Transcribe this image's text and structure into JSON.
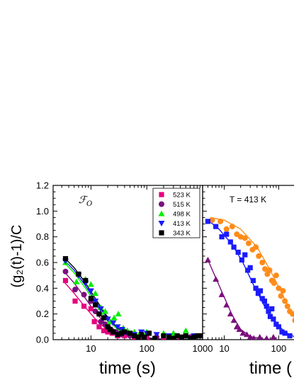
{
  "chart_data": [
    {
      "type": "scatter",
      "panel_label": "ℱ",
      "panel_label_sub": "O",
      "xlabel": "time (s)",
      "ylabel": "(g₂(t)-1)/C",
      "x_scale": "log",
      "xlim": [
        2.1,
        1000
      ],
      "ylim": [
        0,
        1.2
      ],
      "x_ticks": [
        {
          "value": 10,
          "label": "10"
        },
        {
          "value": 100,
          "label": "100"
        },
        {
          "value": 1000,
          "label": "1000"
        }
      ],
      "y_ticks": [
        {
          "value": 0.0,
          "label": "0.0"
        },
        {
          "value": 0.2,
          "label": "0.2"
        },
        {
          "value": 0.4,
          "label": "0.4"
        },
        {
          "value": 0.6,
          "label": "0.6"
        },
        {
          "value": 0.8,
          "label": "0.8"
        },
        {
          "value": 1.0,
          "label": "1.0"
        },
        {
          "value": 1.2,
          "label": "1.2"
        }
      ],
      "legend_position": "top-right",
      "series": [
        {
          "name": "523 K",
          "marker": "square",
          "color": "#e6007e",
          "points": [
            [
              3.5,
              0.46
            ],
            [
              5.2,
              0.3
            ],
            [
              7.5,
              0.26
            ],
            [
              10,
              0.24
            ],
            [
              11.5,
              0.14
            ],
            [
              14,
              0.1
            ],
            [
              17,
              0.07
            ],
            [
              20,
              0.06
            ],
            [
              24,
              0.05
            ],
            [
              30,
              0.03
            ],
            [
              40,
              0.03
            ],
            [
              60,
              0.02
            ],
            [
              100,
              0.02
            ],
            [
              200,
              0.01
            ],
            [
              400,
              0.02
            ],
            [
              700,
              0.01
            ]
          ],
          "fit": [
            [
              3.3,
              0.45
            ],
            [
              5,
              0.36
            ],
            [
              8,
              0.25
            ],
            [
              12,
              0.16
            ],
            [
              18,
              0.09
            ],
            [
              30,
              0.04
            ],
            [
              60,
              0.015
            ],
            [
              150,
              0.004
            ],
            [
              1000,
              0.0
            ]
          ]
        },
        {
          "name": "515 K",
          "marker": "circle",
          "color": "#7b0f7e",
          "points": [
            [
              3.5,
              0.53
            ],
            [
              5.2,
              0.39
            ],
            [
              7.5,
              0.35
            ],
            [
              10,
              0.3
            ],
            [
              12,
              0.22
            ],
            [
              15,
              0.14
            ],
            [
              18,
              0.12
            ],
            [
              23,
              0.07
            ],
            [
              28,
              0.06
            ],
            [
              35,
              0.04
            ],
            [
              50,
              0.03
            ],
            [
              80,
              0.02
            ],
            [
              150,
              0.02
            ],
            [
              300,
              0.01
            ],
            [
              600,
              0.02
            ]
          ],
          "fit": [
            [
              3.3,
              0.53
            ],
            [
              5,
              0.44
            ],
            [
              8,
              0.32
            ],
            [
              12,
              0.21
            ],
            [
              18,
              0.13
            ],
            [
              30,
              0.06
            ],
            [
              60,
              0.02
            ],
            [
              150,
              0.005
            ],
            [
              1000,
              0.0
            ]
          ]
        },
        {
          "name": "498 K",
          "marker": "triangle-up",
          "color": "#00ee00",
          "points": [
            [
              3.5,
              0.6
            ],
            [
              5.5,
              0.45
            ],
            [
              8,
              0.47
            ],
            [
              10,
              0.43
            ],
            [
              12,
              0.36
            ],
            [
              15,
              0.25
            ],
            [
              18,
              0.22
            ],
            [
              22,
              0.14
            ],
            [
              26,
              0.17
            ],
            [
              31,
              0.2
            ],
            [
              38,
              0.09
            ],
            [
              45,
              0.07
            ],
            [
              60,
              0.06
            ],
            [
              75,
              0.05
            ],
            [
              100,
              0.06
            ],
            [
              200,
              0.05
            ],
            [
              300,
              0.05
            ],
            [
              500,
              0.07
            ]
          ],
          "fit": [
            [
              3.3,
              0.6
            ],
            [
              5,
              0.52
            ],
            [
              8,
              0.4
            ],
            [
              12,
              0.28
            ],
            [
              18,
              0.17
            ],
            [
              30,
              0.08
            ],
            [
              60,
              0.025
            ],
            [
              150,
              0.005
            ],
            [
              1000,
              0.0
            ]
          ]
        },
        {
          "name": "413 K",
          "marker": "triangle-down",
          "color": "#1a1aff",
          "points": [
            [
              3.5,
              0.61
            ],
            [
              6,
              0.5
            ],
            [
              8,
              0.44
            ],
            [
              10,
              0.38
            ],
            [
              12,
              0.3
            ],
            [
              15,
              0.24
            ],
            [
              20,
              0.16
            ],
            [
              25,
              0.13
            ],
            [
              30,
              0.1
            ],
            [
              36,
              0.08
            ],
            [
              45,
              0.05
            ],
            [
              60,
              0.04
            ],
            [
              80,
              0.06
            ],
            [
              100,
              0.05
            ],
            [
              150,
              0.04
            ],
            [
              250,
              0.03
            ],
            [
              400,
              0.02
            ],
            [
              700,
              0.03
            ]
          ],
          "fit": [
            [
              3.3,
              0.62
            ],
            [
              5,
              0.54
            ],
            [
              8,
              0.42
            ],
            [
              12,
              0.3
            ],
            [
              18,
              0.19
            ],
            [
              30,
              0.09
            ],
            [
              60,
              0.03
            ],
            [
              150,
              0.006
            ],
            [
              1000,
              0.0
            ]
          ]
        },
        {
          "name": "343 K",
          "marker": "square",
          "color": "#000000",
          "points": [
            [
              3.5,
              0.63
            ],
            [
              6,
              0.51
            ],
            [
              8,
              0.46
            ],
            [
              10,
              0.32
            ],
            [
              12,
              0.27
            ],
            [
              14,
              0.2
            ],
            [
              17,
              0.17
            ],
            [
              20,
              0.1
            ],
            [
              22,
              0.08
            ],
            [
              25,
              0.06
            ],
            [
              30,
              0.04
            ],
            [
              35,
              0.05
            ],
            [
              40,
              0.06
            ],
            [
              50,
              0.05
            ],
            [
              60,
              0.03
            ],
            [
              70,
              0.02
            ],
            [
              80,
              0.04
            ],
            [
              90,
              0.02
            ],
            [
              110,
              0.05
            ],
            [
              140,
              0.01
            ],
            [
              200,
              0.03
            ],
            [
              250,
              0.02
            ],
            [
              300,
              0.01
            ],
            [
              350,
              0.03
            ],
            [
              420,
              0.02
            ],
            [
              500,
              0.03
            ],
            [
              600,
              0.01
            ],
            [
              700,
              0.02
            ],
            [
              800,
              0.03
            ],
            [
              900,
              0.03
            ]
          ],
          "fit": [
            [
              3.3,
              0.64
            ],
            [
              5,
              0.56
            ],
            [
              8,
              0.44
            ],
            [
              12,
              0.32
            ],
            [
              18,
              0.2
            ],
            [
              30,
              0.09
            ],
            [
              60,
              0.025
            ],
            [
              150,
              0.004
            ],
            [
              1000,
              0.0
            ]
          ]
        }
      ]
    },
    {
      "type": "scatter",
      "annotation": "T = 413 K",
      "xlabel": "time (",
      "x_scale": "log",
      "xlim": [
        4,
        300
      ],
      "ylim": [
        0,
        1.2
      ],
      "x_ticks": [
        {
          "value": 10,
          "label": "10"
        },
        {
          "value": 100,
          "label": "100"
        }
      ],
      "series": [
        {
          "marker": "circle",
          "color": "#ff8c1a",
          "points": [
            [
              6,
              0.93
            ],
            [
              8.5,
              0.92
            ],
            [
              11,
              0.86
            ],
            [
              14,
              0.88
            ],
            [
              17,
              0.82
            ],
            [
              20,
              0.8
            ],
            [
              24,
              0.79
            ],
            [
              28,
              0.75
            ],
            [
              33,
              0.7
            ],
            [
              38,
              0.72
            ],
            [
              43,
              0.65
            ],
            [
              50,
              0.6
            ],
            [
              56,
              0.55
            ],
            [
              62,
              0.51
            ],
            [
              68,
              0.54
            ],
            [
              75,
              0.46
            ],
            [
              82,
              0.44
            ],
            [
              90,
              0.5
            ],
            [
              100,
              0.4
            ],
            [
              110,
              0.34
            ],
            [
              120,
              0.38
            ],
            [
              130,
              0.3
            ],
            [
              145,
              0.26
            ],
            [
              160,
              0.22
            ],
            [
              180,
              0.2
            ],
            [
              200,
              0.15
            ],
            [
              220,
              0.12
            ],
            [
              240,
              0.08
            ],
            [
              260,
              0.06
            ],
            [
              280,
              0.04
            ]
          ],
          "fit": [
            [
              5.5,
              0.95
            ],
            [
              10,
              0.93
            ],
            [
              20,
              0.86
            ],
            [
              40,
              0.72
            ],
            [
              70,
              0.54
            ],
            [
              100,
              0.41
            ],
            [
              150,
              0.26
            ],
            [
              220,
              0.13
            ],
            [
              300,
              0.05
            ]
          ]
        },
        {
          "marker": "square",
          "color": "#1a1aff",
          "points": [
            [
              5,
              0.92
            ],
            [
              7,
              0.88
            ],
            [
              9,
              0.8
            ],
            [
              11,
              0.82
            ],
            [
              13,
              0.76
            ],
            [
              15,
              0.72
            ],
            [
              18,
              0.68
            ],
            [
              21,
              0.62
            ],
            [
              24,
              0.66
            ],
            [
              27,
              0.54
            ],
            [
              30,
              0.56
            ],
            [
              34,
              0.46
            ],
            [
              38,
              0.4
            ],
            [
              42,
              0.36
            ],
            [
              46,
              0.38
            ],
            [
              50,
              0.32
            ],
            [
              55,
              0.3
            ],
            [
              60,
              0.26
            ],
            [
              65,
              0.22
            ],
            [
              70,
              0.18
            ],
            [
              75,
              0.24
            ],
            [
              80,
              0.16
            ],
            [
              90,
              0.12
            ],
            [
              100,
              0.1
            ],
            [
              115,
              0.06
            ],
            [
              130,
              0.05
            ],
            [
              160,
              0.03
            ]
          ],
          "fit": [
            [
              5,
              0.93
            ],
            [
              8,
              0.86
            ],
            [
              14,
              0.74
            ],
            [
              22,
              0.6
            ],
            [
              35,
              0.42
            ],
            [
              55,
              0.26
            ],
            [
              85,
              0.14
            ],
            [
              130,
              0.06
            ],
            [
              200,
              0.02
            ]
          ]
        },
        {
          "marker": "triangle-up",
          "color": "#7b0f7e",
          "points": [
            [
              5,
              0.62
            ],
            [
              7,
              0.47
            ],
            [
              9,
              0.35
            ],
            [
              11,
              0.27
            ],
            [
              13,
              0.2
            ],
            [
              15,
              0.15
            ],
            [
              17,
              0.1
            ],
            [
              19,
              0.08
            ],
            [
              22,
              0.05
            ],
            [
              26,
              0.04
            ],
            [
              30,
              0.02
            ],
            [
              35,
              0.01
            ],
            [
              45,
              0.02
            ],
            [
              60,
              0.01
            ],
            [
              80,
              0.02
            ]
          ],
          "fit": [
            [
              5,
              0.62
            ],
            [
              7,
              0.48
            ],
            [
              10,
              0.33
            ],
            [
              14,
              0.19
            ],
            [
              20,
              0.08
            ],
            [
              30,
              0.025
            ],
            [
              50,
              0.005
            ],
            [
              100,
              0.0
            ]
          ]
        }
      ]
    }
  ]
}
